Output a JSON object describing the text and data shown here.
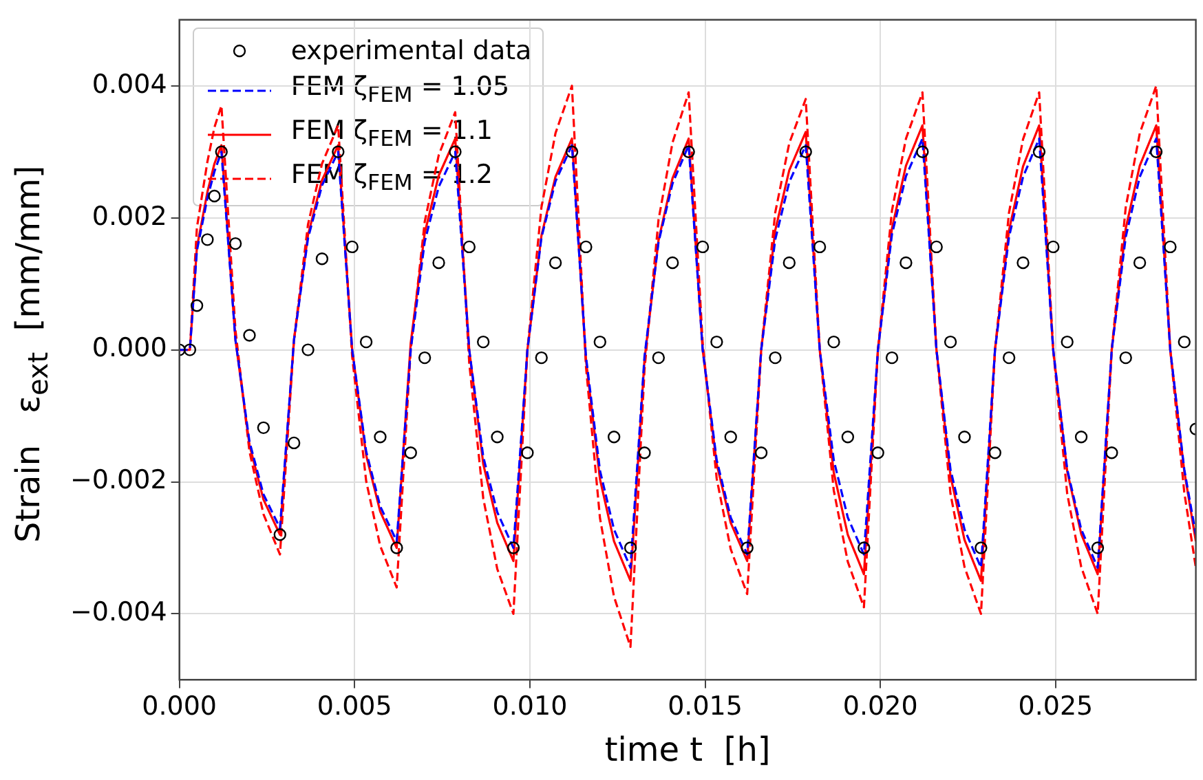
{
  "chart_data": {
    "type": "line",
    "xlabel": "time t  [h]",
    "ylabel": "Strain   ε$_{ext}$  [mm/mm]",
    "x": [
      0,
      0.0003,
      0.0005,
      0.0008,
      0.001,
      0.0012,
      0.0016,
      0.002,
      0.0024,
      0.00287,
      0.00327,
      0.00367,
      0.00407,
      0.00453,
      0.00493,
      0.00533,
      0.00573,
      0.0062,
      0.0066,
      0.007,
      0.0074,
      0.00787,
      0.00827,
      0.00867,
      0.00907,
      0.00953,
      0.00993,
      0.01033,
      0.01073,
      0.0112,
      0.0116,
      0.012,
      0.0124,
      0.01287,
      0.01327,
      0.01367,
      0.01407,
      0.01453,
      0.01493,
      0.01533,
      0.01573,
      0.0162,
      0.0166,
      0.017,
      0.0174,
      0.01787,
      0.01827,
      0.01867,
      0.01907,
      0.01953,
      0.01993,
      0.02033,
      0.02073,
      0.0212,
      0.0216,
      0.022,
      0.0224,
      0.02287,
      0.02327,
      0.02367,
      0.02407,
      0.02453,
      0.02493,
      0.02533,
      0.02573,
      0.0262,
      0.0266,
      0.027,
      0.0274,
      0.02787,
      0.02827,
      0.02867,
      0.029
    ],
    "series": [
      {
        "name": "experimental data",
        "type": "scatter",
        "marker": "circle",
        "color": "#000000",
        "values": [
          0,
          0,
          0.00067,
          0.00167,
          0.00233,
          0.003,
          0.00161,
          0.00022,
          -0.00118,
          -0.0028,
          -0.00141,
          0,
          0.00138,
          0.003,
          0.00156,
          0.00012,
          -0.00132,
          -0.003,
          -0.00156,
          -0.00012,
          0.00132,
          0.003,
          0.00156,
          0.00012,
          -0.00132,
          -0.003,
          -0.00156,
          -0.00012,
          0.00132,
          0.003,
          0.00156,
          0.00012,
          -0.00132,
          -0.003,
          -0.00156,
          -0.00012,
          0.00132,
          0.003,
          0.00156,
          0.00012,
          -0.00132,
          -0.003,
          -0.00156,
          -0.00012,
          0.00132,
          0.003,
          0.00156,
          0.00012,
          -0.00132,
          -0.003,
          -0.00156,
          -0.00012,
          0.00132,
          0.003,
          0.00156,
          0.00012,
          -0.00132,
          -0.003,
          -0.00156,
          -0.00012,
          0.00132,
          0.003,
          0.00156,
          0.00012,
          -0.00132,
          -0.003,
          -0.00156,
          -0.00012,
          0.00132,
          0.003,
          0.00156,
          0.00012,
          -0.0012
        ]
      },
      {
        "name": "FEM ζ$_{FEM}$ = 1.05",
        "line_style": "dashed",
        "color": "#0000ff",
        "values": [
          0,
          0,
          0.0015,
          0.0023,
          0.0027,
          0.003,
          0.00015,
          -0.00139,
          -0.00219,
          -0.0027,
          0.00015,
          0.00169,
          0.00249,
          0.003,
          0,
          -0.00154,
          -0.00237,
          -0.0029,
          0,
          0.00164,
          0.00247,
          0.003,
          0,
          -0.00162,
          -0.00246,
          -0.003,
          0,
          0.0017,
          0.00255,
          0.0031,
          -0.0001,
          -0.00183,
          -0.00272,
          -0.0033,
          -0.0001,
          0.00163,
          0.00252,
          0.0031,
          0,
          -0.00167,
          -0.00254,
          -0.0031,
          0,
          0.00167,
          0.00254,
          0.0031,
          0,
          -0.00167,
          -0.00254,
          -0.0031,
          0,
          0.00175,
          0.00263,
          0.0032,
          0,
          -0.00181,
          -0.00272,
          -0.0033,
          0,
          0.00171,
          0.00262,
          0.0032,
          0,
          -0.00181,
          -0.00272,
          -0.0033,
          0,
          0.00171,
          0.00262,
          0.0032,
          0,
          -0.00181,
          -0.0028
        ]
      },
      {
        "name": "FEM ζ$_{FEM}$ = 1.1",
        "line_style": "solid",
        "color": "#ff0000",
        "values": [
          0,
          0,
          0.00155,
          0.00239,
          0.00282,
          0.0031,
          0.00015,
          -0.00144,
          -0.00227,
          -0.0028,
          0.00015,
          0.00174,
          0.00257,
          0.0031,
          0,
          -0.0016,
          -0.00245,
          -0.003,
          0.0001,
          0.00177,
          0.00264,
          0.0032,
          0,
          -0.00173,
          -0.00262,
          -0.0032,
          0,
          0.00173,
          0.00262,
          0.0032,
          -0.00015,
          -0.00196,
          -0.0029,
          -0.0035,
          -0.00015,
          0.00166,
          0.0026,
          0.0032,
          0,
          -0.00173,
          -0.00262,
          -0.0032,
          0,
          0.00181,
          0.00272,
          0.0033,
          0,
          -0.00186,
          -0.0028,
          -0.0034,
          0,
          0.00184,
          0.00279,
          0.0034,
          0,
          -0.00191,
          -0.00288,
          -0.0035,
          0,
          0.00181,
          0.00278,
          0.0034,
          0,
          -0.00184,
          -0.00279,
          -0.0034,
          0,
          0.00184,
          0.00279,
          0.0034,
          0,
          -0.00184,
          -0.0029
        ]
      },
      {
        "name": "FEM ζ$_{FEM}$ = 1.2",
        "line_style": "dashed",
        "color": "#ff0000",
        "values": [
          0,
          0,
          0.00185,
          0.00285,
          0.00337,
          0.0037,
          0.0003,
          -0.00154,
          -0.00249,
          -0.0031,
          0.00015,
          0.0019,
          0.00282,
          0.0034,
          -0.0001,
          -0.00199,
          -0.00297,
          -0.0036,
          0,
          0.00194,
          0.00295,
          0.0036,
          -0.0002,
          -0.00225,
          -0.00332,
          -0.004,
          0,
          0.00216,
          0.00328,
          0.004,
          -0.00025,
          -0.00255,
          -0.00374,
          -0.0045,
          -0.0003,
          0.00197,
          0.00314,
          0.0039,
          0.0001,
          -0.00195,
          -0.00302,
          -0.0037,
          0,
          0.00208,
          0.00313,
          0.0038,
          0,
          -0.00213,
          -0.00321,
          -0.0039,
          0,
          0.00211,
          0.0032,
          0.0039,
          0,
          -0.00218,
          -0.00329,
          -0.004,
          0,
          0.00208,
          0.00319,
          0.0039,
          0,
          -0.00218,
          -0.00329,
          -0.004,
          0,
          0.00216,
          0.00328,
          0.004,
          0,
          -0.00216,
          -0.0033
        ]
      }
    ],
    "xlim": [
      0,
      0.029
    ],
    "ylim": [
      -0.005,
      0.005
    ],
    "xticks": [
      {
        "value": 0,
        "label": "0.000"
      },
      {
        "value": 0.005,
        "label": "0.005"
      },
      {
        "value": 0.01,
        "label": "0.010"
      },
      {
        "value": 0.015,
        "label": "0.015"
      },
      {
        "value": 0.02,
        "label": "0.020"
      },
      {
        "value": 0.025,
        "label": "0.025"
      }
    ],
    "yticks": [
      {
        "value": -0.004,
        "label": "−0.004"
      },
      {
        "value": -0.002,
        "label": "−0.002"
      },
      {
        "value": 0,
        "label": "0.000"
      },
      {
        "value": 0.002,
        "label": "0.002"
      },
      {
        "value": 0.004,
        "label": "0.004"
      }
    ],
    "grid": true,
    "legend": "top left"
  }
}
